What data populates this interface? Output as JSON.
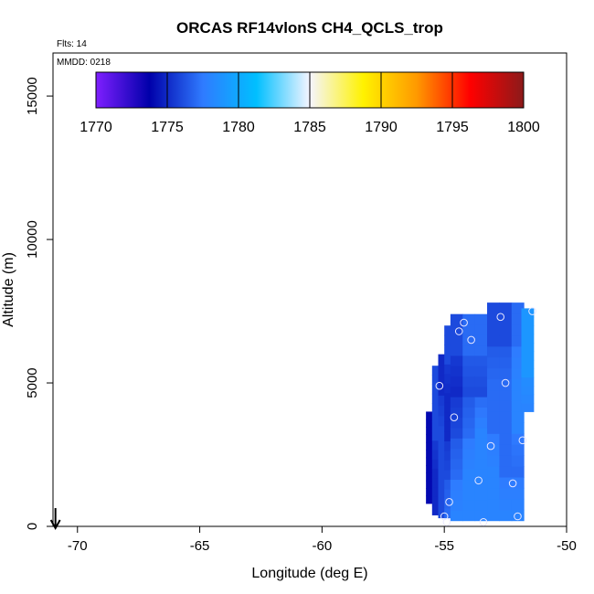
{
  "chart_data": {
    "type": "heatmap",
    "title": "ORCAS RF14vlonS CH4_QCLS_trop",
    "corner_note": "Flts: 14",
    "date_note": "MMDD: 0218",
    "xlabel": "Longitude (deg E)",
    "ylabel": "Altitude (m)",
    "xlim": [
      -71,
      -50
    ],
    "ylim": [
      0,
      16500
    ],
    "x_ticks": [
      -70,
      -65,
      -60,
      -55,
      -50
    ],
    "x_tick_labels": [
      "-70",
      "-65",
      "-60",
      "-55",
      "-50"
    ],
    "y_ticks": [
      0,
      5000,
      10000,
      15000
    ],
    "y_tick_labels": [
      "0",
      "5000",
      "10000",
      "15000"
    ],
    "colorbar": {
      "min": 1770,
      "max": 1800,
      "ticks": [
        1770,
        1775,
        1780,
        1785,
        1790,
        1795,
        1800
      ],
      "tick_labels": [
        "1770",
        "1775",
        "1780",
        "1785",
        "1790",
        "1795",
        "1800"
      ],
      "colors": [
        "#7f1fff",
        "#0000aa",
        "#2f7bff",
        "#00bfff",
        "#f5f5ff",
        "#fff200",
        "#ff9900",
        "#ff0000",
        "#8b1a1a"
      ]
    },
    "grid": false,
    "arrow_at_longitude": -70.9,
    "heatmap_columns": [
      {
        "lon": -55.5,
        "alt_bottom": 800,
        "alt_top": 4000,
        "values": [
          1774,
          1774,
          1774
        ]
      },
      {
        "lon": -55.25,
        "alt_bottom": 400,
        "alt_top": 5600,
        "values": [
          1775,
          1775,
          1776,
          1776
        ]
      },
      {
        "lon": -55.0,
        "alt_bottom": 300,
        "alt_top": 6000,
        "values": [
          1776,
          1776,
          1776,
          1775
        ]
      },
      {
        "lon": -54.75,
        "alt_bottom": 300,
        "alt_top": 7000,
        "values": [
          1777,
          1776,
          1775,
          1775,
          1776
        ]
      },
      {
        "lon": -54.5,
        "alt_bottom": 200,
        "alt_top": 7400,
        "values": [
          1778,
          1777,
          1776,
          1775,
          1776
        ]
      },
      {
        "lon": -54.0,
        "alt_bottom": 200,
        "alt_top": 7400,
        "values": [
          1778,
          1778,
          1777,
          1776,
          1777
        ]
      },
      {
        "lon": -53.5,
        "alt_bottom": 200,
        "alt_top": 7400,
        "values": [
          1778,
          1778,
          1778,
          1776,
          1777
        ]
      },
      {
        "lon": -53.0,
        "alt_bottom": 200,
        "alt_top": 7800,
        "values": [
          1778,
          1778,
          1777,
          1777,
          1776
        ]
      },
      {
        "lon": -52.5,
        "alt_bottom": 200,
        "alt_top": 7800,
        "values": [
          1778,
          1777,
          1777,
          1777,
          1776
        ]
      },
      {
        "lon": -52.0,
        "alt_bottom": 200,
        "alt_top": 7800,
        "values": [
          1778,
          1777,
          1778,
          1778,
          1777
        ]
      },
      {
        "lon": -51.6,
        "alt_bottom": 4000,
        "alt_top": 7600,
        "values": [
          1778,
          1779,
          1779
        ]
      }
    ],
    "sample_points": [
      {
        "lon": -54.2,
        "alt": 7100
      },
      {
        "lon": -52.7,
        "alt": 7300
      },
      {
        "lon": -51.4,
        "alt": 7500
      },
      {
        "lon": -54.4,
        "alt": 6800
      },
      {
        "lon": -53.9,
        "alt": 6500
      },
      {
        "lon": -55.2,
        "alt": 4900
      },
      {
        "lon": -52.5,
        "alt": 5000
      },
      {
        "lon": -54.6,
        "alt": 3800
      },
      {
        "lon": -51.8,
        "alt": 3000
      },
      {
        "lon": -53.1,
        "alt": 2800
      },
      {
        "lon": -53.6,
        "alt": 1600
      },
      {
        "lon": -52.2,
        "alt": 1500
      },
      {
        "lon": -54.8,
        "alt": 850
      },
      {
        "lon": -55.0,
        "alt": 350
      },
      {
        "lon": -52.0,
        "alt": 350
      },
      {
        "lon": -54.9,
        "alt": 150
      },
      {
        "lon": -53.4,
        "alt": 150
      }
    ]
  }
}
